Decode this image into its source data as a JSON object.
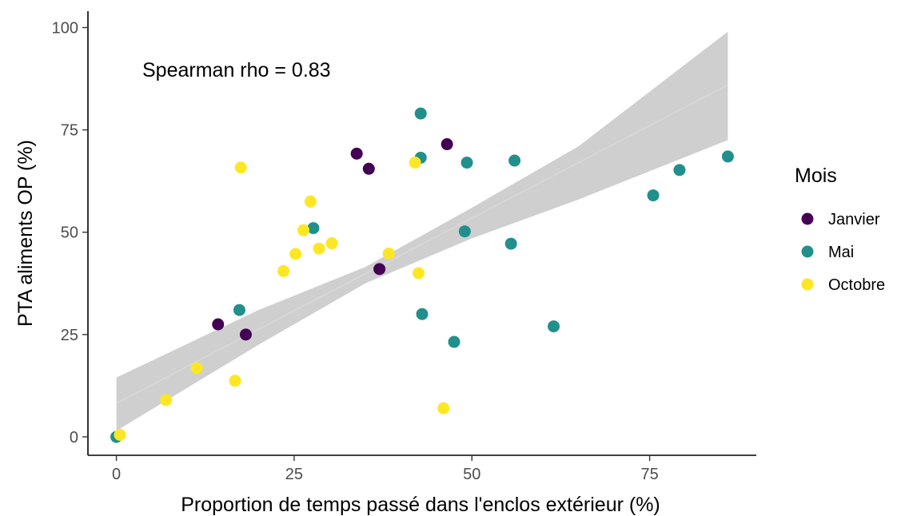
{
  "chart_data": {
    "type": "scatter",
    "title": "",
    "xlabel": "Proportion de temps passé dans l'enclos extérieur (%)",
    "ylabel": "PTA aliments OP (%)",
    "xlim": [
      -4,
      90
    ],
    "ylim": [
      -4.5,
      104
    ],
    "x_ticks": [
      0,
      25,
      50,
      75
    ],
    "y_ticks": [
      0,
      25,
      50,
      75,
      100
    ],
    "grid": false,
    "annotation": "Spearman rho = 0.83",
    "legend": {
      "title": "Mois",
      "position": "right",
      "entries": [
        "Janvier",
        "Mai",
        "Octobre"
      ]
    },
    "colors": {
      "Janvier": "#440154",
      "Mai": "#21908C",
      "Octobre": "#FDE725",
      "ribbon": "#bfbfbf",
      "fit_line": "#d6d6d6",
      "axis": "#000000"
    },
    "series": [
      {
        "name": "Janvier",
        "points": [
          {
            "x": 14.3,
            "y": 27.5
          },
          {
            "x": 18.2,
            "y": 25.0
          },
          {
            "x": 33.8,
            "y": 69.2
          },
          {
            "x": 35.5,
            "y": 65.5
          },
          {
            "x": 37.0,
            "y": 41.0
          },
          {
            "x": 46.5,
            "y": 71.5
          }
        ]
      },
      {
        "name": "Mai",
        "points": [
          {
            "x": 0.0,
            "y": 0.0
          },
          {
            "x": 17.3,
            "y": 31.0
          },
          {
            "x": 27.7,
            "y": 51.0
          },
          {
            "x": 42.8,
            "y": 79.0
          },
          {
            "x": 42.8,
            "y": 68.2
          },
          {
            "x": 43.0,
            "y": 30.0
          },
          {
            "x": 47.5,
            "y": 23.2
          },
          {
            "x": 49.3,
            "y": 67.0
          },
          {
            "x": 49.0,
            "y": 50.2
          },
          {
            "x": 55.5,
            "y": 47.2
          },
          {
            "x": 56.0,
            "y": 67.5
          },
          {
            "x": 61.5,
            "y": 27.0
          },
          {
            "x": 75.5,
            "y": 59.0
          },
          {
            "x": 79.2,
            "y": 65.2
          },
          {
            "x": 86.0,
            "y": 68.5
          }
        ]
      },
      {
        "name": "Octobre",
        "points": [
          {
            "x": 0.5,
            "y": 0.5
          },
          {
            "x": 7.0,
            "y": 9.0
          },
          {
            "x": 11.3,
            "y": 16.8
          },
          {
            "x": 16.7,
            "y": 13.7
          },
          {
            "x": 17.5,
            "y": 65.8
          },
          {
            "x": 23.5,
            "y": 40.5
          },
          {
            "x": 25.2,
            "y": 44.7
          },
          {
            "x": 26.3,
            "y": 50.5
          },
          {
            "x": 27.3,
            "y": 57.5
          },
          {
            "x": 28.5,
            "y": 46.0
          },
          {
            "x": 30.3,
            "y": 47.3
          },
          {
            "x": 38.3,
            "y": 44.8
          },
          {
            "x": 42.0,
            "y": 67.0
          },
          {
            "x": 42.5,
            "y": 40.0
          },
          {
            "x": 46.0,
            "y": 7.0
          }
        ]
      }
    ],
    "fit": {
      "method": "linear",
      "x_range": [
        0,
        86
      ],
      "line": {
        "y_start": 8.2,
        "y_end": 86.0
      },
      "ribbon_lower": [
        {
          "x": 0,
          "y": 1.5
        },
        {
          "x": 20,
          "y": 22.5
        },
        {
          "x": 35,
          "y": 37.5
        },
        {
          "x": 50,
          "y": 48.5
        },
        {
          "x": 65,
          "y": 58.0
        },
        {
          "x": 86,
          "y": 72.5
        }
      ],
      "ribbon_upper": [
        {
          "x": 0,
          "y": 14.5
        },
        {
          "x": 20,
          "y": 31.0
        },
        {
          "x": 35,
          "y": 41.5
        },
        {
          "x": 50,
          "y": 56.0
        },
        {
          "x": 65,
          "y": 71.0
        },
        {
          "x": 86,
          "y": 99.0
        }
      ]
    }
  }
}
